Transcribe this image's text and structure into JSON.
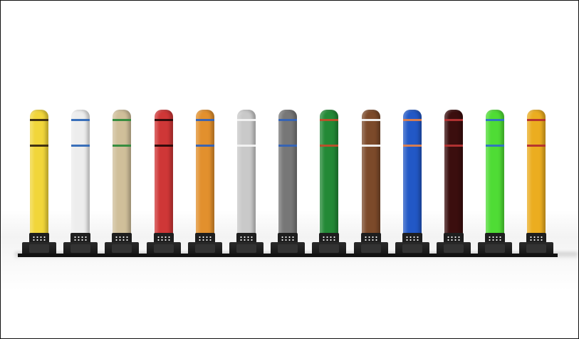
{
  "scene": {
    "posts": [
      {
        "color": "#f1d63a",
        "band_color": "#3a2a10"
      },
      {
        "color": "#ededed",
        "band_color": "#2f68b7"
      },
      {
        "color": "#d0bf9a",
        "band_color": "#2f8a3b"
      },
      {
        "color": "#cf3737",
        "band_color": "#2b0a0a"
      },
      {
        "color": "#e2902d",
        "band_color": "#3463b6"
      },
      {
        "color": "#c9c9c9",
        "band_color": "#f3f3f3"
      },
      {
        "color": "#777777",
        "band_color": "#3463b6"
      },
      {
        "color": "#238936",
        "band_color": "#bf4f2b"
      },
      {
        "color": "#7c4a2a",
        "band_color": "#f3f3f3"
      },
      {
        "color": "#2258c6",
        "band_color": "#df7f4c"
      },
      {
        "color": "#3b0e0e",
        "band_color": "#b53434"
      },
      {
        "color": "#4fdc35",
        "band_color": "#2e72c4"
      },
      {
        "color": "#ebad20",
        "band_color": "#b42f2f"
      }
    ]
  }
}
